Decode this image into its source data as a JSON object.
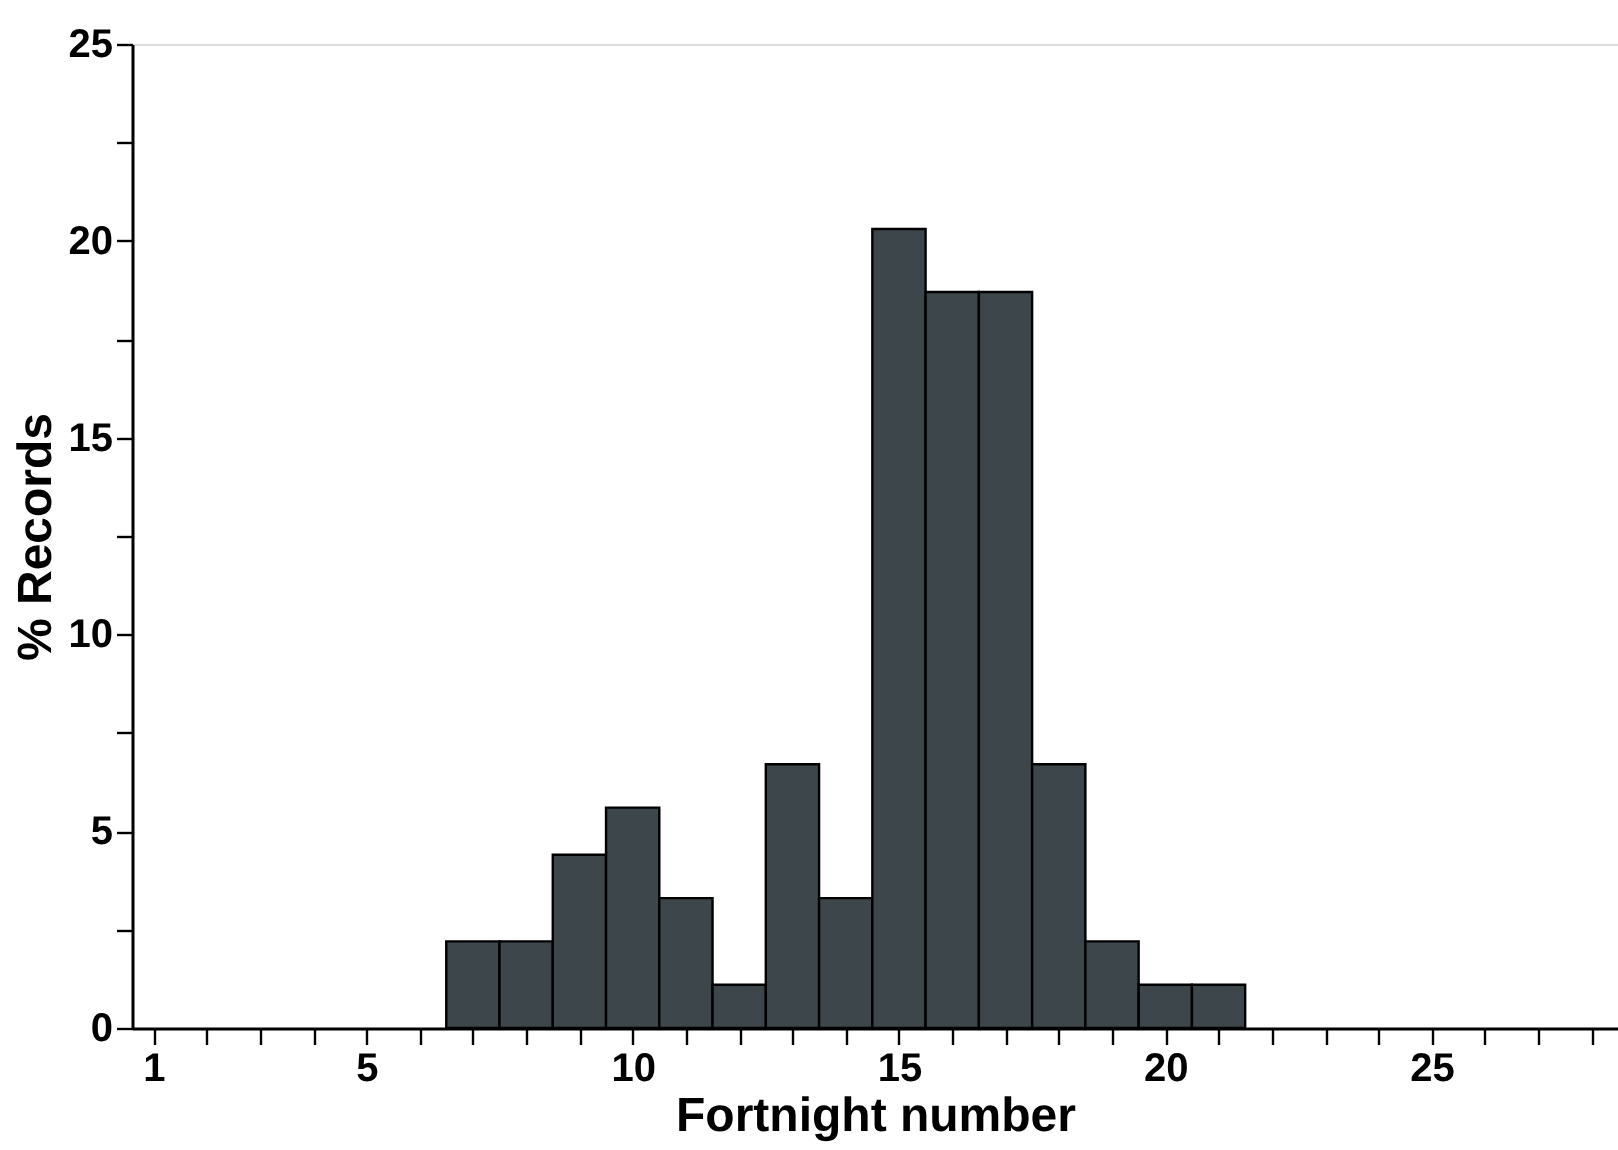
{
  "chart_data": {
    "type": "histogram",
    "xlabel": "Fortnight number",
    "ylabel": "% Records",
    "bins": [
      6.5,
      7.5,
      8.5,
      9.5,
      10.5,
      11.5,
      12.5,
      13.5,
      14.5,
      15.5,
      16.5,
      17.5,
      18.5,
      19.5,
      20.5,
      21.5
    ],
    "values": [
      2.2,
      2.2,
      4.4,
      5.6,
      3.3,
      1.1,
      6.7,
      3.3,
      20.3,
      18.7,
      18.7,
      6.7,
      2.2,
      1.1,
      1.1
    ],
    "color": "#3c464b",
    "xlim": [
      0.6,
      28.5
    ],
    "ylim": [
      0,
      25
    ],
    "xticks": [
      1,
      {
        "value": 2,
        "label": null
      },
      {
        "value": 3,
        "label": null
      },
      {
        "value": 4,
        "label": null
      },
      5,
      {
        "value": 6,
        "label": null
      },
      {
        "value": 7,
        "label": null
      },
      {
        "value": 8,
        "label": null
      },
      {
        "value": 9,
        "label": null
      },
      10,
      {
        "value": 11,
        "label": null
      },
      {
        "value": 12,
        "label": null
      },
      {
        "value": 13,
        "label": null
      },
      {
        "value": 14,
        "label": null
      },
      15,
      {
        "value": 16,
        "label": null
      },
      {
        "value": 17,
        "label": null
      },
      {
        "value": 18,
        "label": null
      },
      {
        "value": 19,
        "label": null
      },
      20,
      {
        "value": 21,
        "label": null
      },
      {
        "value": 22,
        "label": null
      },
      {
        "value": 23,
        "label": null
      },
      {
        "value": 24,
        "label": null
      },
      25,
      {
        "value": 26,
        "label": null
      },
      {
        "value": 27,
        "label": null
      },
      {
        "value": 28,
        "label": null
      }
    ],
    "yticks": [
      0,
      {
        "value": 2.5,
        "label": null
      },
      5,
      {
        "value": 7.5,
        "label": null
      },
      10,
      {
        "value": 12.5,
        "label": null
      },
      15,
      {
        "value": 17.5,
        "label": null
      },
      20,
      {
        "value": 22.5,
        "label": null
      },
      25
    ],
    "grid": false
  }
}
